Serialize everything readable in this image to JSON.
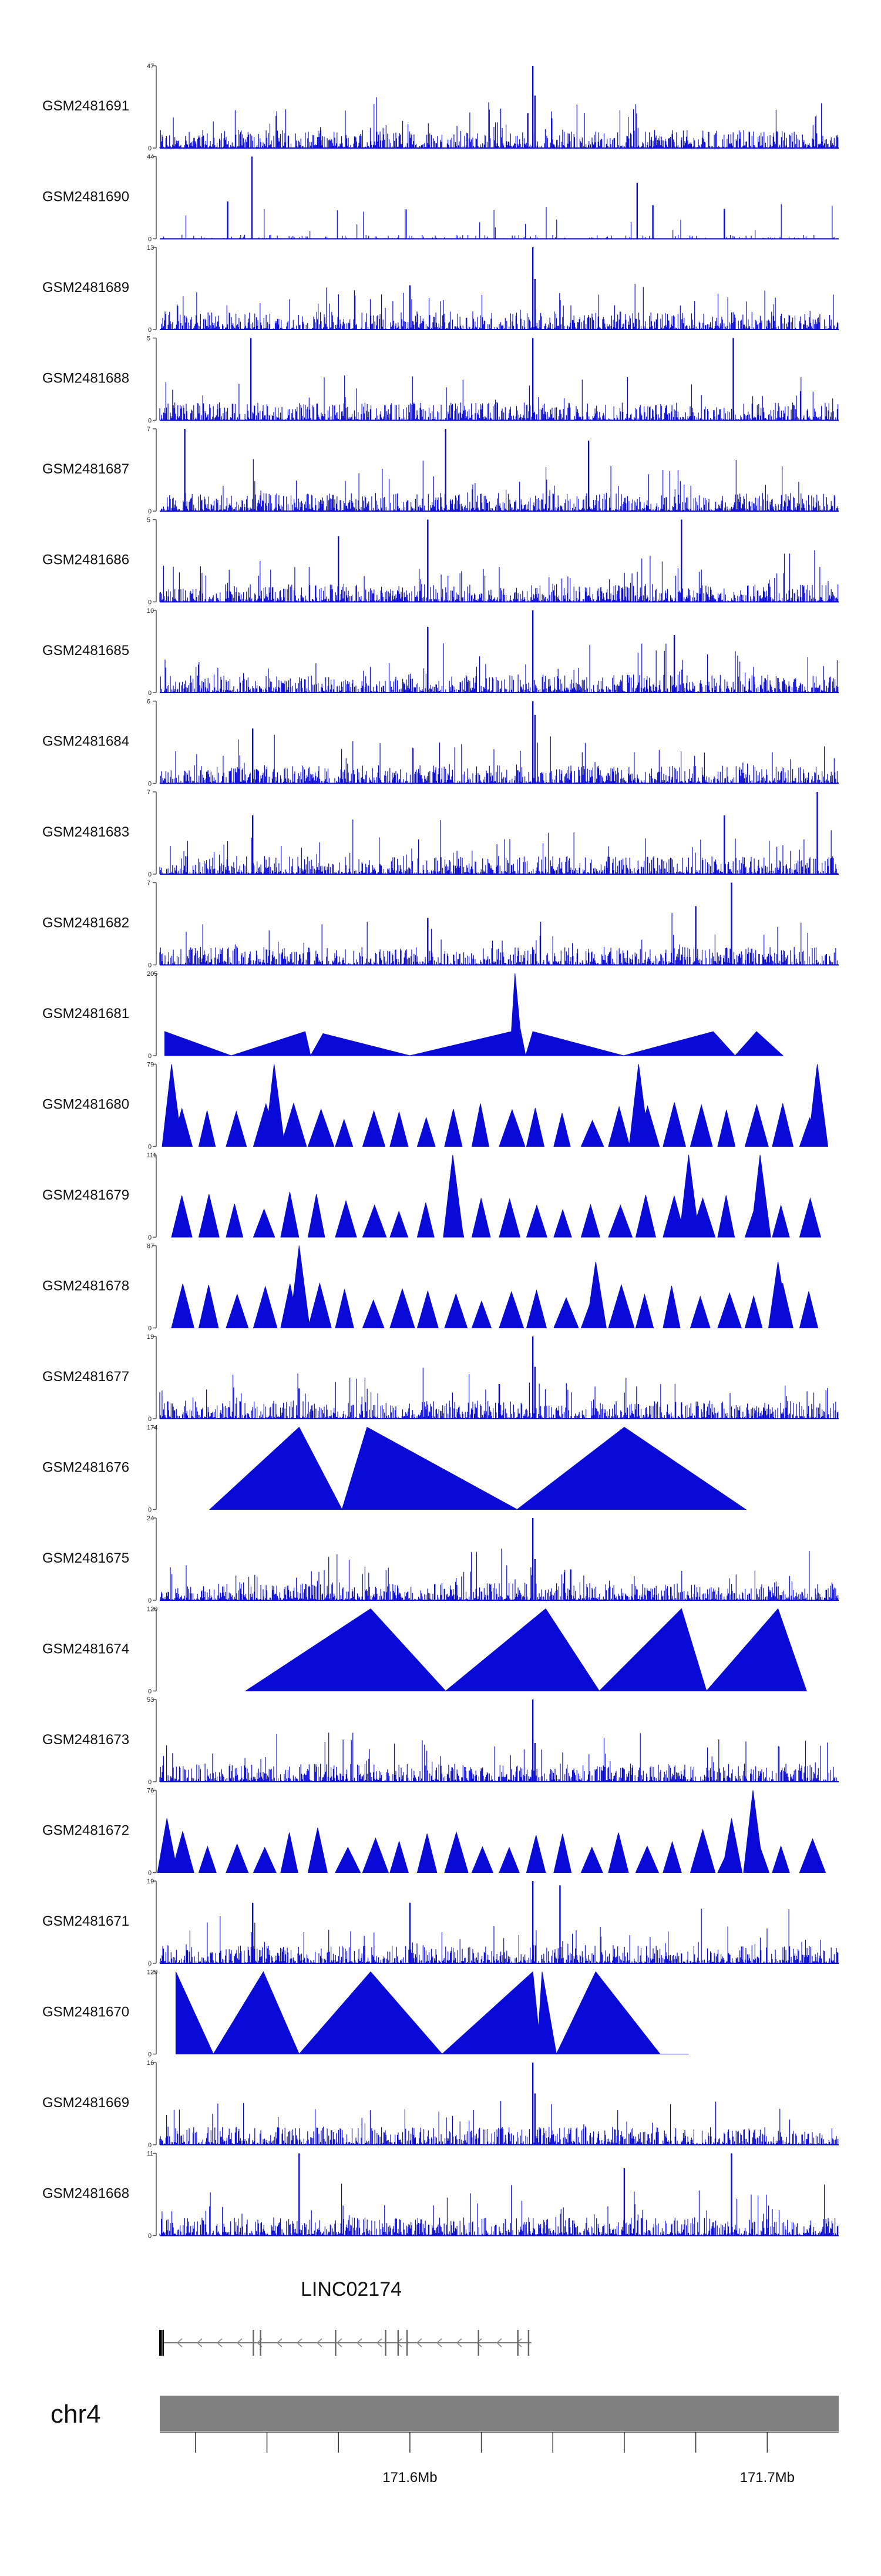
{
  "chart_data": {
    "type": "area",
    "title": "",
    "colors": {
      "signal": "#0a0ad8",
      "ideogram": "#808080",
      "axis": "#333333"
    },
    "x_range_mb": [
      171.53,
      171.72
    ],
    "tracks": [
      {
        "name": "GSM2481691",
        "ymax": "47",
        "style": "dense",
        "peaks": [
          [
            171.6344,
            47
          ],
          [
            171.635,
            30
          ],
          [
            171.633,
            20
          ],
          [
            171.575,
            10
          ]
        ]
      },
      {
        "name": "GSM2481690",
        "ymax": "44",
        "style": "sparse",
        "peaks": [
          [
            171.5558,
            44
          ],
          [
            171.6636,
            30
          ],
          [
            171.668,
            18
          ],
          [
            171.549,
            20
          ],
          [
            171.688,
            16
          ]
        ]
      },
      {
        "name": "GSM2481689",
        "ymax": "13",
        "style": "dense",
        "peaks": [
          [
            171.6344,
            13
          ],
          [
            171.635,
            8
          ],
          [
            171.6,
            7
          ]
        ]
      },
      {
        "name": "GSM2481688",
        "ymax": "5",
        "style": "dense",
        "peaks": [
          [
            171.6344,
            5
          ],
          [
            171.5555,
            5
          ],
          [
            171.6905,
            5
          ]
        ]
      },
      {
        "name": "GSM2481687",
        "ymax": "7",
        "style": "dense",
        "peaks": [
          [
            171.537,
            7
          ],
          [
            171.61,
            7
          ],
          [
            171.65,
            6
          ]
        ]
      },
      {
        "name": "GSM2481686",
        "ymax": "5",
        "style": "dense",
        "peaks": [
          [
            171.605,
            5
          ],
          [
            171.676,
            5
          ],
          [
            171.58,
            4
          ]
        ]
      },
      {
        "name": "GSM2481685",
        "ymax": "10",
        "style": "dense",
        "peaks": [
          [
            171.6344,
            10
          ],
          [
            171.605,
            8
          ],
          [
            171.674,
            7
          ]
        ]
      },
      {
        "name": "GSM2481684",
        "ymax": "6",
        "style": "dense",
        "peaks": [
          [
            171.6344,
            6
          ],
          [
            171.635,
            5
          ],
          [
            171.556,
            4
          ]
        ]
      },
      {
        "name": "GSM2481683",
        "ymax": "7",
        "style": "dense",
        "peaks": [
          [
            171.714,
            7
          ],
          [
            171.688,
            5
          ],
          [
            171.556,
            5
          ]
        ]
      },
      {
        "name": "GSM2481682",
        "ymax": "7",
        "style": "dense",
        "peaks": [
          [
            171.69,
            7
          ],
          [
            171.68,
            5
          ],
          [
            171.605,
            4
          ]
        ]
      },
      {
        "name": "GSM2481681",
        "ymax": "205",
        "style": "triangles",
        "peaks": [
          [
            171.5314,
            60
          ],
          [
            171.55,
            0
          ],
          [
            171.5707,
            60
          ],
          [
            171.5722,
            0
          ],
          [
            171.5757,
            55
          ],
          [
            171.6,
            0
          ],
          [
            171.6284,
            60
          ],
          [
            171.6294,
            205
          ],
          [
            171.6308,
            70
          ],
          [
            171.6324,
            0
          ],
          [
            171.6344,
            60
          ],
          [
            171.6,
            0
          ],
          [
            171.6598,
            0
          ],
          [
            171.6849,
            60
          ],
          [
            171.691,
            0
          ],
          [
            171.697,
            60
          ],
          [
            171.7044,
            0
          ]
        ]
      },
      {
        "name": "GSM2481680",
        "ymax": "79",
        "style": "triangles",
        "peaks": [
          [
            171.5333,
            79
          ],
          [
            171.562,
            79
          ],
          [
            171.664,
            79
          ],
          [
            171.714,
            79
          ]
        ]
      },
      {
        "name": "GSM2481679",
        "ymax": "111",
        "style": "triangles",
        "peaks": [
          [
            171.612,
            111
          ],
          [
            171.678,
            111
          ],
          [
            171.698,
            111
          ]
        ]
      },
      {
        "name": "GSM2481678",
        "ymax": "87",
        "style": "triangles",
        "peaks": [
          [
            171.569,
            87
          ],
          [
            171.652,
            70
          ],
          [
            171.703,
            70
          ]
        ]
      },
      {
        "name": "GSM2481677",
        "ymax": "19",
        "style": "dense",
        "peaks": [
          [
            171.6344,
            19
          ],
          [
            171.635,
            12
          ],
          [
            171.625,
            8
          ],
          [
            171.569,
            7
          ]
        ]
      },
      {
        "name": "GSM2481676",
        "ymax": "174",
        "style": "triangles",
        "peaks": [
          [
            171.544,
            0
          ],
          [
            171.569,
            174
          ],
          [
            171.581,
            0
          ],
          [
            171.588,
            174
          ],
          [
            171.63,
            0
          ],
          [
            171.66,
            174
          ],
          [
            171.694,
            0
          ]
        ]
      },
      {
        "name": "GSM2481675",
        "ymax": "24",
        "style": "dense",
        "peaks": [
          [
            171.6344,
            24
          ],
          [
            171.635,
            12
          ],
          [
            171.645,
            9
          ]
        ]
      },
      {
        "name": "GSM2481674",
        "ymax": "120",
        "style": "triangles",
        "peaks": [
          [
            171.554,
            0
          ],
          [
            171.589,
            120
          ],
          [
            171.61,
            0
          ],
          [
            171.638,
            120
          ],
          [
            171.653,
            0
          ],
          [
            171.676,
            120
          ],
          [
            171.683,
            0
          ],
          [
            171.703,
            120
          ],
          [
            171.711,
            0
          ]
        ]
      },
      {
        "name": "GSM2481673",
        "ymax": "53",
        "style": "dense",
        "peaks": [
          [
            171.6344,
            53
          ],
          [
            171.635,
            25
          ]
        ]
      },
      {
        "name": "GSM2481672",
        "ymax": "76",
        "style": "triangles",
        "peaks": [
          [
            171.696,
            76
          ],
          [
            171.69,
            50
          ],
          [
            171.532,
            50
          ]
        ]
      },
      {
        "name": "GSM2481671",
        "ymax": "19",
        "style": "dense",
        "peaks": [
          [
            171.6344,
            19
          ],
          [
            171.642,
            18
          ],
          [
            171.6,
            14
          ],
          [
            171.556,
            14
          ]
        ]
      },
      {
        "name": "GSM2481670",
        "ymax": "129",
        "style": "triangles",
        "peaks": [
          [
            171.5345,
            129
          ],
          [
            171.545,
            0
          ],
          [
            171.559,
            129
          ],
          [
            171.569,
            0
          ],
          [
            171.589,
            129
          ],
          [
            171.609,
            0
          ],
          [
            171.6344,
            129
          ],
          [
            171.636,
            40
          ],
          [
            171.637,
            129
          ],
          [
            171.641,
            0
          ],
          [
            171.652,
            129
          ],
          [
            171.67,
            0
          ],
          [
            171.678,
            0
          ]
        ]
      },
      {
        "name": "GSM2481669",
        "ymax": "16",
        "style": "dense",
        "peaks": [
          [
            171.6344,
            16
          ],
          [
            171.635,
            10
          ]
        ]
      },
      {
        "name": "GSM2481668",
        "ymax": "11",
        "style": "dense",
        "peaks": [
          [
            171.569,
            11
          ],
          [
            171.69,
            11
          ],
          [
            171.66,
            9
          ]
        ]
      }
    ],
    "gene": {
      "name": "LINC02174",
      "start_mb": 171.53,
      "end_mb": 171.634,
      "strand": "-",
      "exons_mb": [
        171.5305,
        171.556,
        171.558,
        171.579,
        171.593,
        171.5965,
        171.599,
        171.619,
        171.63,
        171.633
      ]
    },
    "chromosome": {
      "name": "chr4"
    },
    "x_axis": {
      "ticks_mb": [
        171.54,
        171.56,
        171.58,
        171.6,
        171.62,
        171.64,
        171.66,
        171.68,
        171.7
      ],
      "labels": [
        {
          "mb": 171.6,
          "text": "171.6Mb"
        },
        {
          "mb": 171.7,
          "text": "171.7Mb"
        }
      ]
    },
    "ylim_min": "0"
  }
}
